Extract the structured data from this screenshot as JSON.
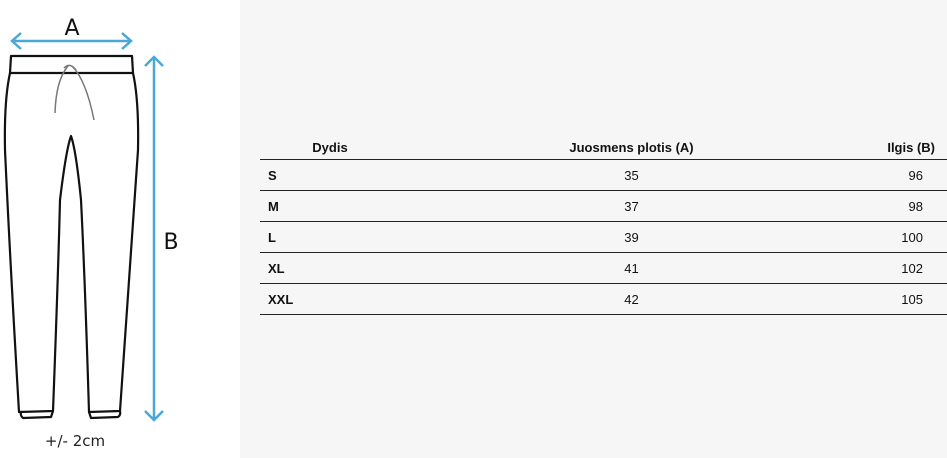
{
  "diagram": {
    "label_a": "A",
    "label_b": "B",
    "tolerance": "+/- 2cm",
    "arrow_color": "#4aa8d8"
  },
  "table": {
    "headers": [
      "Dydis",
      "Juosmens plotis (A)",
      "Ilgis (B)"
    ],
    "rows": [
      [
        "S",
        "35",
        "96"
      ],
      [
        "M",
        "37",
        "98"
      ],
      [
        "L",
        "39",
        "100"
      ],
      [
        "XL",
        "41",
        "102"
      ],
      [
        "XXL",
        "42",
        "105"
      ]
    ]
  }
}
